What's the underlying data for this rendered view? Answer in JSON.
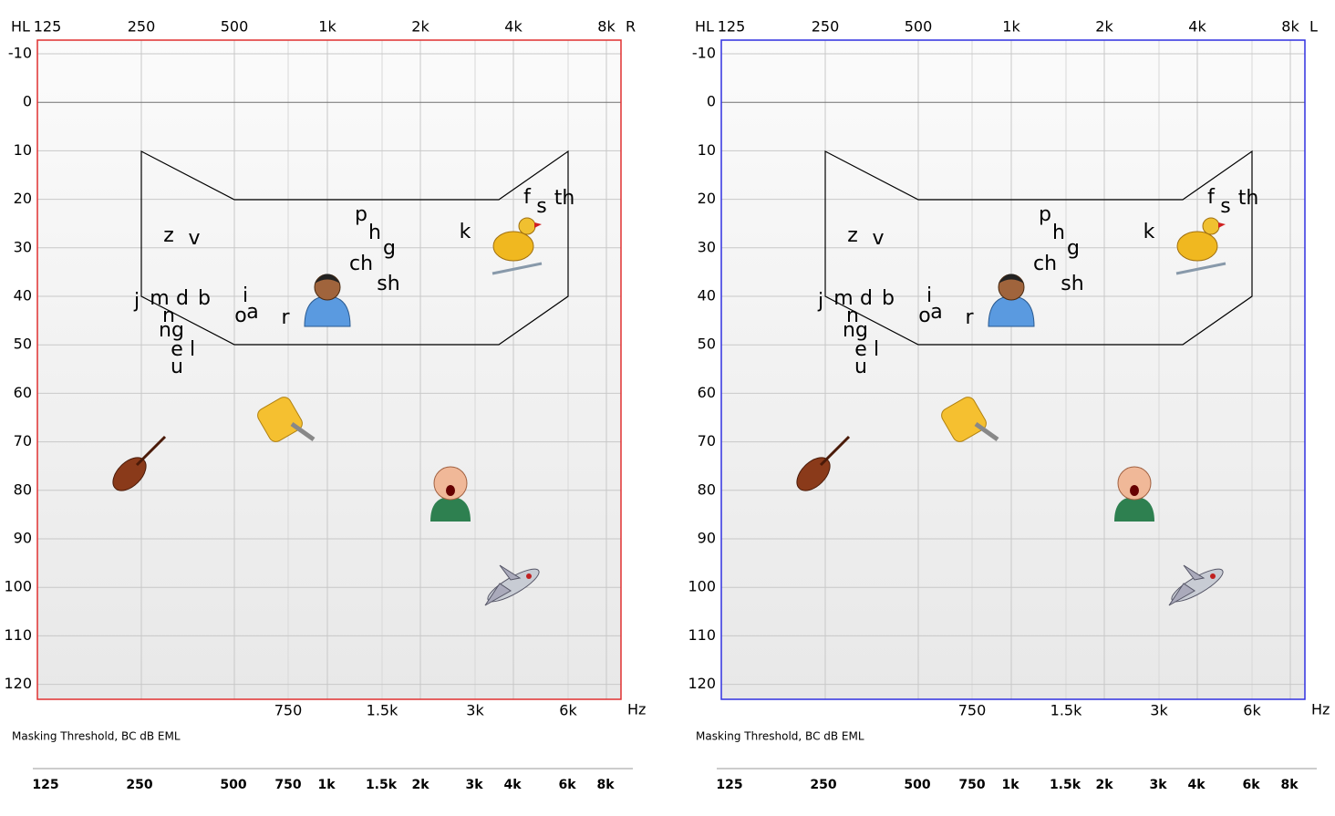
{
  "panels": [
    {
      "hl": "HL",
      "ear": "R",
      "color": "#e03030",
      "top_ticks": [
        "125",
        "250",
        "500",
        "1k",
        "2k",
        "4k",
        "8k"
      ],
      "y_ticks": [
        "-10",
        "0",
        "10",
        "20",
        "30",
        "40",
        "50",
        "60",
        "70",
        "80",
        "90",
        "100",
        "110",
        "120"
      ],
      "bottom_ticks": [
        "750",
        "1.5k",
        "3k",
        "6k"
      ],
      "hz": "Hz",
      "caption": "Masking Threshold, BC dB EML",
      "scale_ticks": [
        "125",
        "250",
        "500",
        "750",
        "1k",
        "1.5k",
        "2k",
        "3k",
        "4k",
        "6k",
        "8k"
      ]
    },
    {
      "hl": "HL",
      "ear": "L",
      "color": "#3030e0",
      "top_ticks": [
        "125",
        "250",
        "500",
        "1k",
        "2k",
        "4k",
        "8k"
      ],
      "y_ticks": [
        "-10",
        "0",
        "10",
        "20",
        "30",
        "40",
        "50",
        "60",
        "70",
        "80",
        "90",
        "100",
        "110",
        "120"
      ],
      "bottom_ticks": [
        "750",
        "1.5k",
        "3k",
        "6k"
      ],
      "hz": "Hz",
      "caption": "Masking Threshold, BC dB EML",
      "scale_ticks": [
        "125",
        "250",
        "500",
        "750",
        "1k",
        "1.5k",
        "2k",
        "3k",
        "4k",
        "6k",
        "8k"
      ]
    }
  ],
  "phonemes": [
    "z",
    "v",
    "p",
    "h",
    "g",
    "ch",
    "sh",
    "k",
    "f",
    "s",
    "th",
    "j",
    "m",
    "d",
    "b",
    "n",
    "ng",
    "e",
    "l",
    "u",
    "i",
    "o",
    "a",
    "r"
  ]
}
